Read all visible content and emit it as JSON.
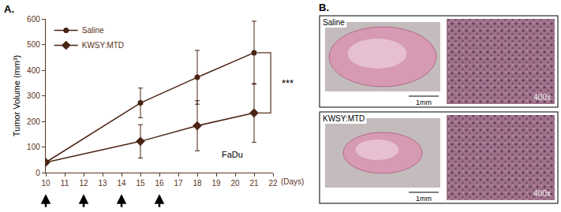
{
  "chart_data": {
    "type": "line",
    "panel_label": "A.",
    "x": [
      10,
      15,
      18,
      21
    ],
    "x_label": "(Days)",
    "y_label": "Tumor Volume (mm³)",
    "xlim": [
      10,
      22
    ],
    "xticks": [
      10,
      11,
      12,
      13,
      14,
      15,
      16,
      17,
      18,
      19,
      20,
      21,
      22
    ],
    "ylim": [
      0,
      600
    ],
    "yticks": [
      0,
      100,
      200,
      300,
      400,
      500,
      600
    ],
    "grid": false,
    "legend": "top-left",
    "series": [
      {
        "name": "Saline",
        "color": "#4a2414",
        "marker": "circle",
        "line_style": "solid",
        "values": [
          40,
          272,
          372,
          468
        ],
        "errors": [
          5,
          58,
          105,
          123
        ]
      },
      {
        "name": "KWSY:MTD",
        "color": "#4a2414",
        "marker": "diamond",
        "line_style": "solid",
        "values": [
          40,
          122,
          183,
          233
        ],
        "errors": [
          5,
          65,
          98,
          115
        ]
      }
    ],
    "treatment_days": [
      10,
      12,
      14,
      16
    ],
    "significance": "***",
    "cell_line": "FaDu"
  },
  "panel_b": {
    "panel_label": "B.",
    "rows": [
      {
        "label": "Saline",
        "scale_bar": "1mm",
        "magnification": "400x"
      },
      {
        "label": "KWSY:MTD",
        "scale_bar": "1mm",
        "magnification": "400x"
      }
    ]
  }
}
